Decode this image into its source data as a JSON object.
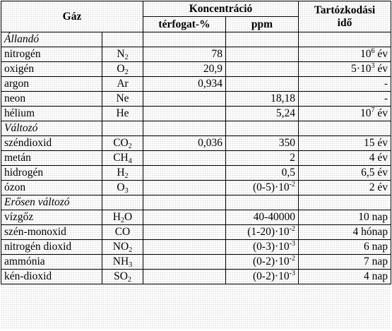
{
  "header": {
    "gas": "Gáz",
    "concentration": "Koncentráció",
    "volume_percent": "térfogat-%",
    "ppm": "ppm",
    "residence_line1": "Tartózkodási",
    "residence_line2": "idő"
  },
  "sections": [
    {
      "title": "Állandó",
      "rows": [
        {
          "name": "nitrogén",
          "formula": {
            "base": "N",
            "sub": "2"
          },
          "volume": "78",
          "ppm": {
            "text": ""
          },
          "residence": {
            "base": "10",
            "sup": "6",
            "rest": " év"
          }
        },
        {
          "name": "oxigén",
          "formula": {
            "base": "O",
            "sub": "2"
          },
          "volume": "20,9",
          "ppm": {
            "text": ""
          },
          "residence": {
            "base": "5·10",
            "sup": "3",
            "rest": " év"
          }
        },
        {
          "name": "argon",
          "formula": {
            "base": "Ar",
            "sub": ""
          },
          "volume": "0,934",
          "ppm": {
            "text": ""
          },
          "residence": {
            "base": "-",
            "sup": "",
            "rest": ""
          }
        },
        {
          "name": "neon",
          "formula": {
            "base": "Ne",
            "sub": ""
          },
          "volume": "",
          "ppm": {
            "text": "18,18"
          },
          "residence": {
            "base": "-",
            "sup": "",
            "rest": ""
          }
        },
        {
          "name": "hélium",
          "formula": {
            "base": "He",
            "sub": ""
          },
          "volume": "",
          "ppm": {
            "text": "5,24"
          },
          "residence": {
            "base": "10",
            "sup": "7",
            "rest": " év"
          }
        }
      ]
    },
    {
      "title": "Változó",
      "rows": [
        {
          "name": "széndioxid",
          "formula": {
            "base": "CO",
            "sub": "2"
          },
          "volume": "0,036",
          "ppm": {
            "text": "350"
          },
          "residence": {
            "base": "15 év",
            "sup": "",
            "rest": ""
          }
        },
        {
          "name": "metán",
          "formula": {
            "base": "CH",
            "sub": "4"
          },
          "volume": "",
          "ppm": {
            "text": "2"
          },
          "residence": {
            "base": "4 év",
            "sup": "",
            "rest": ""
          }
        },
        {
          "name": "hidrogén",
          "formula": {
            "base": "H",
            "sub": "2"
          },
          "volume": "",
          "ppm": {
            "text": "0,5"
          },
          "residence": {
            "base": "6,5 év",
            "sup": "",
            "rest": ""
          }
        },
        {
          "name": "ózon",
          "formula": {
            "base": "O",
            "sub": "3"
          },
          "volume": "",
          "ppm": {
            "text": "(0-5)·10",
            "sup": "-2"
          },
          "residence": {
            "base": "2 év",
            "sup": "",
            "rest": ""
          }
        }
      ]
    },
    {
      "title": "Erősen változó",
      "rows": [
        {
          "name": "vízgőz",
          "formula": {
            "base": "H",
            "sub": "2",
            "tail": "O"
          },
          "volume": "",
          "ppm": {
            "text": "40-40000"
          },
          "residence": {
            "base": "10 nap",
            "sup": "",
            "rest": ""
          }
        },
        {
          "name": "szén-monoxid",
          "formula": {
            "base": "CO",
            "sub": ""
          },
          "volume": "",
          "ppm": {
            "text": "(1-20)·10",
            "sup": "-2"
          },
          "residence": {
            "base": "4 hónap",
            "sup": "",
            "rest": ""
          }
        },
        {
          "name": "nitrogén dioxid",
          "formula": {
            "base": "NO",
            "sub": "2"
          },
          "volume": "",
          "ppm": {
            "text": "(0-3)·10",
            "sup": "-3"
          },
          "residence": {
            "base": "6 nap",
            "sup": "",
            "rest": ""
          }
        },
        {
          "name": "ammónia",
          "formula": {
            "base": "NH",
            "sub": "3"
          },
          "volume": "",
          "ppm": {
            "text": "(0-2)·10",
            "sup": "-2"
          },
          "residence": {
            "base": "7 nap",
            "sup": "",
            "rest": ""
          }
        },
        {
          "name": "kén-dioxid",
          "formula": {
            "base": "SO",
            "sub": "2"
          },
          "volume": "",
          "ppm": {
            "text": "(0-2)·10",
            "sup": "-3"
          },
          "residence": {
            "base": "4 nap",
            "sup": "",
            "rest": ""
          }
        }
      ]
    }
  ]
}
